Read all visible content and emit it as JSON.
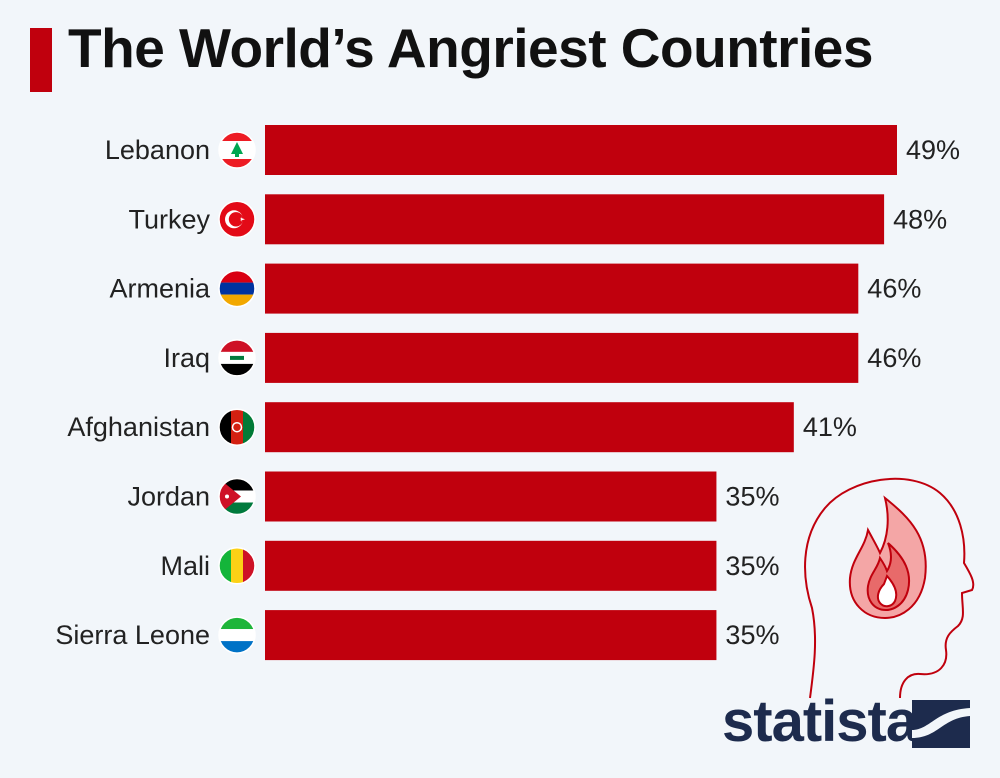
{
  "title": "The World’s Angriest Countries",
  "brand": "statista",
  "colors": {
    "bar": "#c0000d",
    "accent": "#c0000d",
    "brand": "#1d2b4d",
    "background": "#f2f6fa"
  },
  "chart_data": {
    "type": "bar",
    "orientation": "horizontal",
    "title": "The World’s Angriest Countries",
    "categories": [
      "Lebanon",
      "Turkey",
      "Armenia",
      "Iraq",
      "Afghanistan",
      "Jordan",
      "Mali",
      "Sierra Leone"
    ],
    "values": [
      49,
      48,
      46,
      46,
      41,
      35,
      35,
      35
    ],
    "value_labels": [
      "49%",
      "48%",
      "46%",
      "46%",
      "41%",
      "35%",
      "35%",
      "35%"
    ],
    "unit": "%",
    "flags": [
      "lebanon-flag-icon",
      "turkey-flag-icon",
      "armenia-flag-icon",
      "iraq-flag-icon",
      "afghanistan-flag-icon",
      "jordan-flag-icon",
      "mali-flag-icon",
      "sierra-leone-flag-icon"
    ],
    "xlim": [
      0,
      49
    ],
    "grid": false,
    "legend": "none"
  },
  "illustration": "angry-head-icon"
}
